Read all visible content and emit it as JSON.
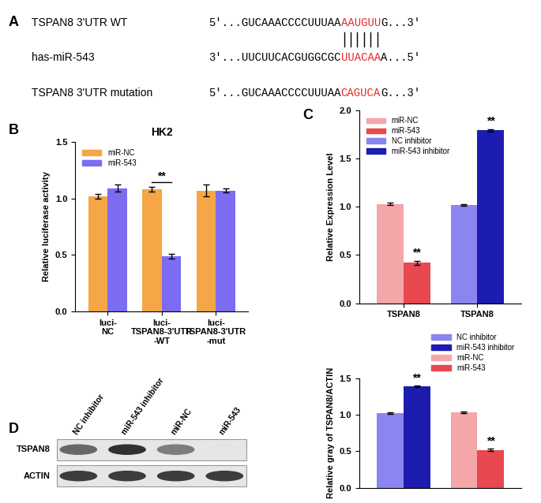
{
  "panel_A": {
    "panel": "A",
    "rows": [
      {
        "name": "TSPAN8 3'UTR WT",
        "prefix": "5'...GUCAAACCCCUUUAA",
        "site": "AAUGUU",
        "suffix": "G...3'"
      },
      {
        "name": "has-miR-543",
        "prefix": "3'...UUCUUCACGUGGCGC",
        "site": "UUACAA",
        "suffix": "A...5'"
      },
      {
        "name": "TSPAN8 3'UTR mutation",
        "prefix": "5'...GUCAAACCCCUUUAA",
        "site": "CAGUCA",
        "suffix": "G...3'"
      }
    ]
  },
  "blot": {
    "panel": "D",
    "lanes": [
      "NC inhibitor",
      "miR-543 inhibitor",
      "miR-NC",
      "miR-543"
    ],
    "rows": [
      {
        "name": "TSPAN8",
        "band_intensity": [
          0.7,
          0.95,
          0.6,
          0.12
        ]
      },
      {
        "name": "ACTIN",
        "band_intensity": [
          0.9,
          0.9,
          0.9,
          0.9
        ]
      }
    ]
  },
  "chart_data": [
    {
      "type": "bar",
      "panel": "B",
      "title": "HK2",
      "y_label": "Relative luciferase activity",
      "categories": [
        "luci-\nNC",
        "luci-\nTSPAN8-3'UTR\n-WT",
        "luci-\nTSPAN8-3'UTR\n-mut"
      ],
      "series": [
        {
          "name": "miR-NC",
          "color": "#F5A646",
          "values": [
            1.02,
            1.08,
            1.07
          ],
          "errors": [
            0.02,
            0.02,
            0.05
          ]
        },
        {
          "name": "miR-543",
          "color": "#7B6CF2",
          "values": [
            1.09,
            0.49,
            1.07
          ],
          "errors": [
            0.03,
            0.02,
            0.02
          ]
        }
      ],
      "annotations": [
        null,
        "**",
        null
      ],
      "ylim": [
        0,
        1.5
      ],
      "yticks": [
        {
          "value": 0,
          "label": "0.0"
        },
        {
          "value": 0.5,
          "label": "0.5"
        },
        {
          "value": 1,
          "label": "1.0"
        },
        {
          "value": 1.5,
          "label": "1.5"
        }
      ],
      "legend": "upper left"
    },
    {
      "type": "bar",
      "panel": "C",
      "y_label": "Relative Expression Level",
      "categories": [
        "TSPAN8",
        "TSPAN8"
      ],
      "series": [
        {
          "name": "miR-NC",
          "color": "#F4A6A8",
          "values": [
            1.03,
            null
          ],
          "errors": [
            0.01,
            null
          ]
        },
        {
          "name": "miR-543",
          "color": "#E84850",
          "values": [
            0.42,
            null
          ],
          "errors": [
            0.02,
            null
          ],
          "annotations": [
            "**",
            null
          ]
        },
        {
          "name": "NC inhibitor",
          "color": "#8A85F0",
          "values": [
            null,
            1.02
          ],
          "errors": [
            null,
            0.01
          ]
        },
        {
          "name": "miR-543 inhibitor",
          "color": "#1C1CB0",
          "values": [
            null,
            1.79
          ],
          "errors": [
            null,
            0.01
          ],
          "annotations": [
            null,
            "**"
          ]
        }
      ],
      "ylim": [
        0,
        2
      ],
      "yticks": [
        {
          "value": 0,
          "label": "0.0"
        },
        {
          "value": 0.5,
          "label": "0.5"
        },
        {
          "value": 1,
          "label": "1.0"
        },
        {
          "value": 1.5,
          "label": "1.5"
        },
        {
          "value": 2,
          "label": "2.0"
        }
      ],
      "legend": "upper left"
    },
    {
      "type": "bar",
      "y_label": "Relative gray of TSPAN8/ACTIN",
      "categories": [
        null,
        null
      ],
      "tick_labels": "y",
      "series": [
        {
          "name": "NC inhibitor",
          "color": "#8A85F0",
          "values": [
            1.02,
            null
          ],
          "errors": [
            0.01,
            null
          ]
        },
        {
          "name": "miR-543 inhibitor",
          "color": "#1C1CB0",
          "values": [
            1.39,
            null
          ],
          "errors": [
            0.01,
            null
          ],
          "annotations": [
            "**",
            null
          ]
        },
        {
          "name": "miR-NC",
          "color": "#F4A6A8",
          "values": [
            null,
            1.03
          ],
          "errors": [
            null,
            0.01
          ]
        },
        {
          "name": "miR-543",
          "color": "#E84850",
          "values": [
            null,
            0.52
          ],
          "errors": [
            null,
            0.02
          ],
          "annotations": [
            null,
            "**"
          ]
        }
      ],
      "ylim": [
        0,
        1.5
      ],
      "yticks": [
        {
          "value": 0,
          "label": "0.0"
        },
        {
          "value": 0.5,
          "label": "0.5"
        },
        {
          "value": 1,
          "label": "1.0"
        },
        {
          "value": 1.5,
          "label": "1.5"
        }
      ],
      "legend": "upper right"
    }
  ]
}
